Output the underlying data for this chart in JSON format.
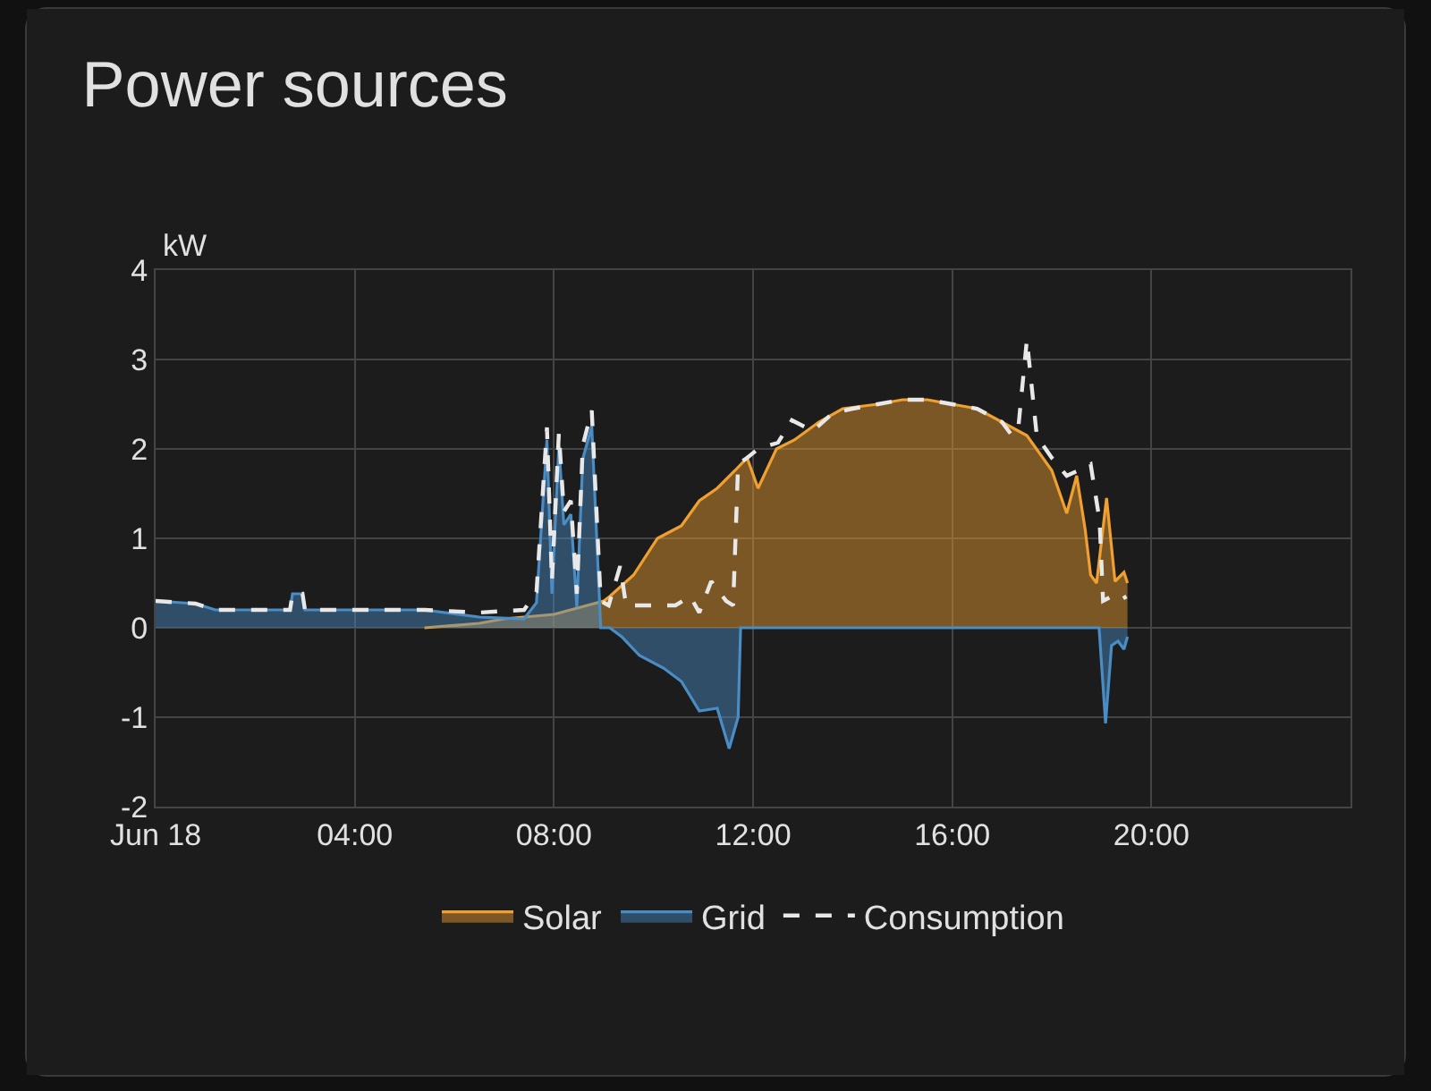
{
  "chart_data": {
    "type": "area",
    "title": "Power sources",
    "ylabel": "kW",
    "xlim": [
      0,
      24
    ],
    "xticks": [
      {
        "value": 0,
        "label": "Jun 18"
      },
      {
        "value": 4,
        "label": "04:00"
      },
      {
        "value": 8,
        "label": "08:00"
      },
      {
        "value": 12,
        "label": "12:00"
      },
      {
        "value": 16,
        "label": "16:00"
      },
      {
        "value": 20,
        "label": "20:00"
      }
    ],
    "ylim": [
      -2,
      4
    ],
    "yticks": [
      -2,
      -1,
      0,
      1,
      2,
      3,
      4
    ],
    "grid": true,
    "legend": "bottom",
    "marker": "none",
    "series": [
      {
        "name": "Solar",
        "color": "#f0a030",
        "x": [
          5.4,
          6.5,
          7,
          8,
          9,
          9.12,
          9.6,
          10.08,
          10.56,
          10.92,
          11.28,
          11.64,
          11.88,
          12.1,
          12.47,
          12.83,
          13.32,
          13.8,
          14.5,
          15,
          15.5,
          16,
          16.5,
          17,
          17.5,
          18,
          18.3,
          18.5,
          18.67,
          18.78,
          18.9,
          19.1,
          19.27,
          19.45,
          19.52
        ],
        "values": [
          0,
          0.05,
          0.1,
          0.15,
          0.3,
          0.35,
          0.59,
          1.0,
          1.14,
          1.42,
          1.56,
          1.76,
          1.9,
          1.56,
          2.0,
          2.1,
          2.3,
          2.45,
          2.5,
          2.55,
          2.55,
          2.5,
          2.45,
          2.3,
          2.15,
          1.76,
          1.28,
          1.7,
          1.1,
          0.59,
          0.5,
          1.45,
          0.52,
          0.62,
          0.5
        ]
      },
      {
        "name": "Grid",
        "color": "#4a8cc4",
        "x": [
          0,
          0.8,
          1.2,
          2.7,
          2.75,
          2.95,
          3.0,
          5.4,
          6.5,
          7.4,
          7.65,
          7.86,
          7.96,
          8.1,
          8.2,
          8.34,
          8.46,
          8.58,
          8.76,
          8.94,
          9.12,
          9.36,
          9.72,
          10.2,
          10.56,
          10.92,
          11.28,
          11.52,
          11.7,
          11.75,
          18.95,
          19.08,
          19.2,
          19.33,
          19.45,
          19.52
        ],
        "values": [
          0.3,
          0.27,
          0.2,
          0.2,
          0.38,
          0.38,
          0.2,
          0.2,
          0.12,
          0.1,
          0.28,
          2.1,
          0.38,
          2.04,
          1.15,
          1.27,
          0.23,
          1.89,
          2.25,
          0,
          0,
          -0.1,
          -0.31,
          -0.45,
          -0.6,
          -0.93,
          -0.9,
          -1.35,
          -1.0,
          0,
          0,
          -1.07,
          -0.2,
          -0.15,
          -0.24,
          -0.1
        ]
      },
      {
        "name": "Consumption",
        "type": "line",
        "line_style": "dashed",
        "color": "#e8e8e8",
        "x": [
          0,
          0.8,
          1.2,
          2.7,
          2.75,
          2.95,
          3.0,
          5.4,
          6.5,
          7.4,
          7.65,
          7.86,
          7.96,
          8.1,
          8.2,
          8.34,
          8.46,
          8.58,
          8.76,
          8.94,
          9.1,
          9.33,
          9.45,
          10.44,
          10.74,
          10.92,
          11.16,
          11.46,
          11.6,
          11.7,
          11.88,
          12.1,
          12.5,
          12.78,
          13.2,
          13.6,
          14,
          14.5,
          15,
          15.5,
          16,
          16.5,
          17,
          17.2,
          17.33,
          17.5,
          17.7,
          18,
          18.3,
          18.5,
          18.78,
          18.96,
          19.03,
          19.2,
          19.35,
          19.5
        ],
        "values": [
          0.3,
          0.27,
          0.2,
          0.2,
          0.38,
          0.38,
          0.2,
          0.2,
          0.17,
          0.2,
          0.4,
          2.24,
          0.52,
          2.18,
          1.3,
          1.42,
          0.38,
          2.04,
          2.43,
          0.3,
          0.25,
          0.69,
          0.25,
          0.25,
          0.35,
          0.17,
          0.52,
          0.3,
          0.25,
          1.83,
          1.9,
          2.0,
          2.07,
          2.32,
          2.2,
          2.4,
          2.45,
          2.5,
          2.55,
          2.55,
          2.5,
          2.45,
          2.3,
          2.15,
          2.25,
          3.22,
          2.14,
          1.9,
          1.7,
          1.75,
          1.83,
          1.2,
          0.3,
          0.35,
          0.3,
          0.35
        ]
      }
    ]
  }
}
